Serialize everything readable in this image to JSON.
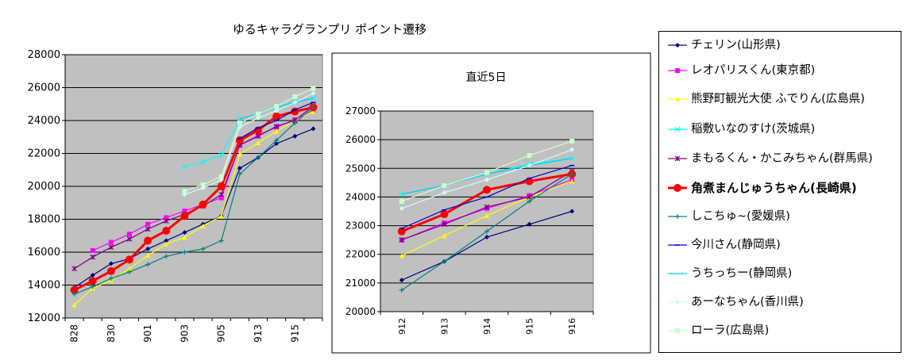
{
  "title": "ゆるキャラグランプリ ポイント遷移",
  "inset_title": "直近5日",
  "legend": [
    {
      "label": "チェリン(山形県)",
      "color": "#000080",
      "marker": "diamond"
    },
    {
      "label": "レオパリスくん(東京都)",
      "color": "#ff00ff",
      "marker": "square"
    },
    {
      "label": "熊野町観光大使 ふでりん(広島県)",
      "color": "#ffff00",
      "marker": "triangle"
    },
    {
      "label": "稲敷いなのすけ(茨城県)",
      "color": "#00ffff",
      "marker": "x"
    },
    {
      "label": "まもるくん・かこみちゃん(群馬県)",
      "color": "#800080",
      "marker": "star"
    },
    {
      "label": "角煮まんじゅうちゃん(長崎県)",
      "color": "#ff0000",
      "marker": "circle",
      "bold": true
    },
    {
      "label": "しこちゅ~(愛媛県)",
      "color": "#008080",
      "marker": "plus"
    },
    {
      "label": "今川さん(静岡県)",
      "color": "#0000cc",
      "marker": "dash"
    },
    {
      "label": "うちっちー(静岡県)",
      "color": "#00ccff",
      "marker": "none"
    },
    {
      "label": "あーなちゃん(香川県)",
      "color": "#ccffff",
      "marker": "diamond"
    },
    {
      "label": "ローラ(広島県)",
      "color": "#ccffcc",
      "marker": "square"
    }
  ],
  "chart_data": [
    {
      "type": "line",
      "x": [
        "828",
        "829",
        "830",
        "831",
        "901",
        "902",
        "903",
        "904",
        "905",
        "912",
        "913",
        "914",
        "915",
        "916"
      ],
      "xticks": [
        "828",
        "830",
        "901",
        "903",
        "905",
        "913",
        "915"
      ],
      "ylim": [
        12000,
        28000
      ],
      "yticks": [
        12000,
        14000,
        16000,
        18000,
        20000,
        22000,
        24000,
        26000,
        28000
      ],
      "grid": true,
      "series": [
        {
          "name": "チェリン(山形県)",
          "values": [
            13850,
            14600,
            15300,
            15600,
            16200,
            16700,
            17200,
            17700,
            18200,
            21100,
            21750,
            22600,
            23050,
            23500
          ]
        },
        {
          "name": "レオパリスくん(東京都)",
          "values": [
            null,
            16100,
            16600,
            17100,
            17700,
            18100,
            18500,
            18900,
            19300,
            22500,
            23100,
            23600,
            24050,
            24600
          ]
        },
        {
          "name": "熊野町観光大使 ふでりん(広島県)",
          "values": [
            12800,
            13800,
            14300,
            15000,
            15800,
            16500,
            16900,
            17600,
            18200,
            21950,
            22650,
            23350,
            24000,
            24550
          ]
        },
        {
          "name": "稲敷いなのすけ(茨城県)",
          "values": [
            null,
            null,
            null,
            null,
            null,
            null,
            21200,
            21500,
            21900,
            24100,
            24400,
            24800,
            25150,
            25350
          ]
        },
        {
          "name": "まもるくん・かこみちゃん(群馬県)",
          "values": [
            15000,
            15700,
            16300,
            16800,
            17400,
            17900,
            18300,
            18800,
            19500,
            22500,
            23050,
            23650,
            24000,
            24900
          ]
        },
        {
          "name": "角煮まんじゅうちゃん(長崎県)",
          "values": [
            13700,
            14250,
            14850,
            15550,
            16700,
            17300,
            18200,
            18900,
            20000,
            22800,
            23400,
            24250,
            24550,
            24800
          ]
        },
        {
          "name": "しこちゅ~(愛媛県)",
          "values": [
            13450,
            13900,
            14400,
            14800,
            15250,
            15750,
            16000,
            16200,
            16700,
            20750,
            21750,
            22800,
            23850,
            24800
          ]
        },
        {
          "name": "今川さん(静岡県)",
          "values": [
            null,
            null,
            null,
            null,
            null,
            null,
            null,
            null,
            null,
            22900,
            23550,
            24000,
            24650,
            25100
          ]
        },
        {
          "name": "うちっちー(静岡県)",
          "values": [
            null,
            null,
            null,
            null,
            null,
            null,
            null,
            null,
            null,
            24100,
            24400,
            24800,
            25100,
            25350
          ]
        },
        {
          "name": "あーなちゃん(香川県)",
          "values": [
            null,
            null,
            null,
            null,
            null,
            null,
            19500,
            19900,
            20400,
            23600,
            24150,
            24600,
            25100,
            25650
          ]
        },
        {
          "name": "ローラ(広島県)",
          "values": [
            null,
            null,
            null,
            null,
            null,
            null,
            19700,
            20100,
            20600,
            23850,
            24400,
            24850,
            25450,
            25950
          ]
        }
      ]
    },
    {
      "type": "line",
      "title": "直近5日",
      "x": [
        "912",
        "913",
        "914",
        "915",
        "916"
      ],
      "ylim": [
        20000,
        27000
      ],
      "yticks": [
        20000,
        21000,
        22000,
        23000,
        24000,
        25000,
        26000,
        27000
      ],
      "grid": true,
      "series": [
        {
          "name": "チェリン(山形県)",
          "values": [
            21100,
            21750,
            22600,
            23050,
            23500
          ]
        },
        {
          "name": "レオパリスくん(東京都)",
          "values": [
            22500,
            23100,
            23600,
            24050,
            24600
          ]
        },
        {
          "name": "熊野町観光大使 ふでりん(広島県)",
          "values": [
            21950,
            22650,
            23350,
            24000,
            24550
          ]
        },
        {
          "name": "稲敷いなのすけ(茨城県)",
          "values": [
            24100,
            24400,
            24800,
            25150,
            25350
          ]
        },
        {
          "name": "まもるくん・かこみちゃん(群馬県)",
          "values": [
            22500,
            23050,
            23650,
            24000,
            24900
          ]
        },
        {
          "name": "角煮まんじゅうちゃん(長崎県)",
          "values": [
            22800,
            23400,
            24250,
            24550,
            24800
          ]
        },
        {
          "name": "しこちゅ~(愛媛県)",
          "values": [
            20750,
            21750,
            22800,
            23850,
            24800
          ]
        },
        {
          "name": "今川さん(静岡県)",
          "values": [
            22900,
            23550,
            24000,
            24650,
            25100
          ]
        },
        {
          "name": "うちっちー(静岡県)",
          "values": [
            24100,
            24400,
            24800,
            25100,
            25350
          ]
        },
        {
          "name": "あーなちゃん(香川県)",
          "values": [
            23600,
            24150,
            24600,
            25100,
            25650
          ]
        },
        {
          "name": "ローラ(広島県)",
          "values": [
            23850,
            24400,
            24850,
            25450,
            25950
          ]
        }
      ]
    }
  ]
}
